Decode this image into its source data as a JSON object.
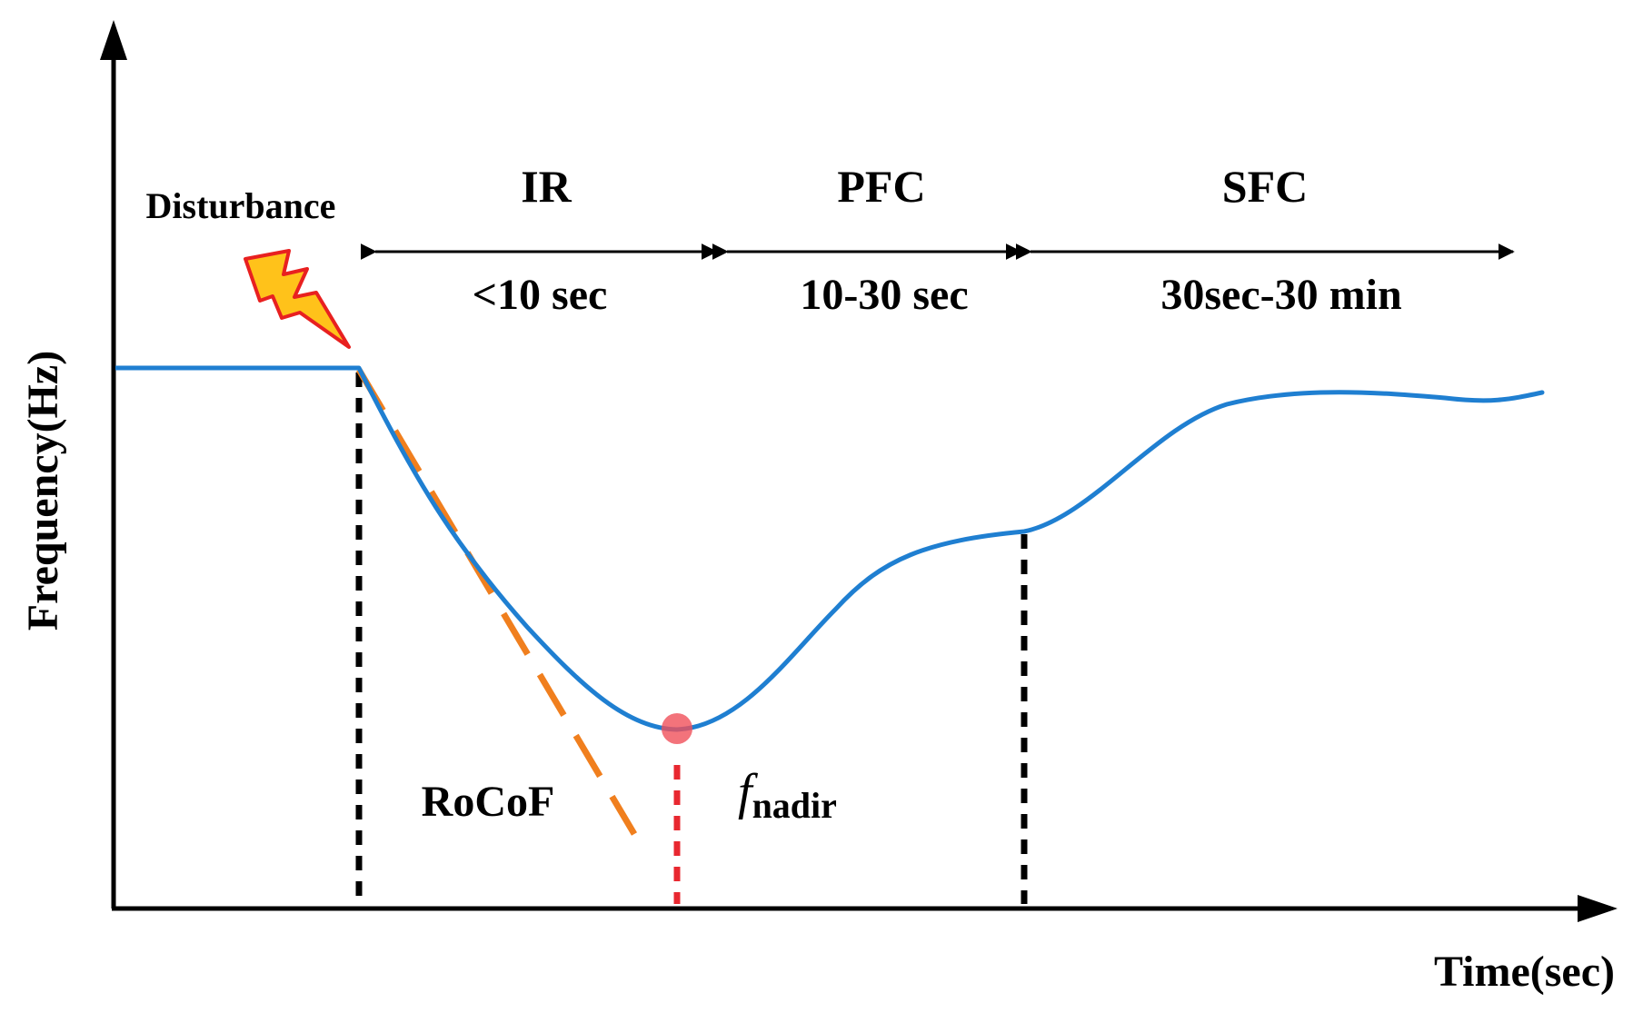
{
  "axes": {
    "x_label": "Time(sec)",
    "y_label": "Frequency(Hz)"
  },
  "event": {
    "label": "Disturbance",
    "icon": "lightning-bolt-icon"
  },
  "phases": [
    {
      "name": "IR",
      "duration": "<10 sec"
    },
    {
      "name": "PFC",
      "duration": "10-30 sec"
    },
    {
      "name": "SFC",
      "duration": "30sec-30 min"
    }
  ],
  "annotations": {
    "rocof": "RoCoF",
    "nadir_symbol": "f",
    "nadir_subscript": "nadir"
  },
  "colors": {
    "curve": "#1f7fd1",
    "rocof_line": "#f07f1e",
    "nadir_marker": "#f0505a",
    "nadir_line": "#e82830",
    "guide_line": "#000000",
    "bolt_fill": "#ffc21a",
    "bolt_stroke": "#e82020"
  }
}
